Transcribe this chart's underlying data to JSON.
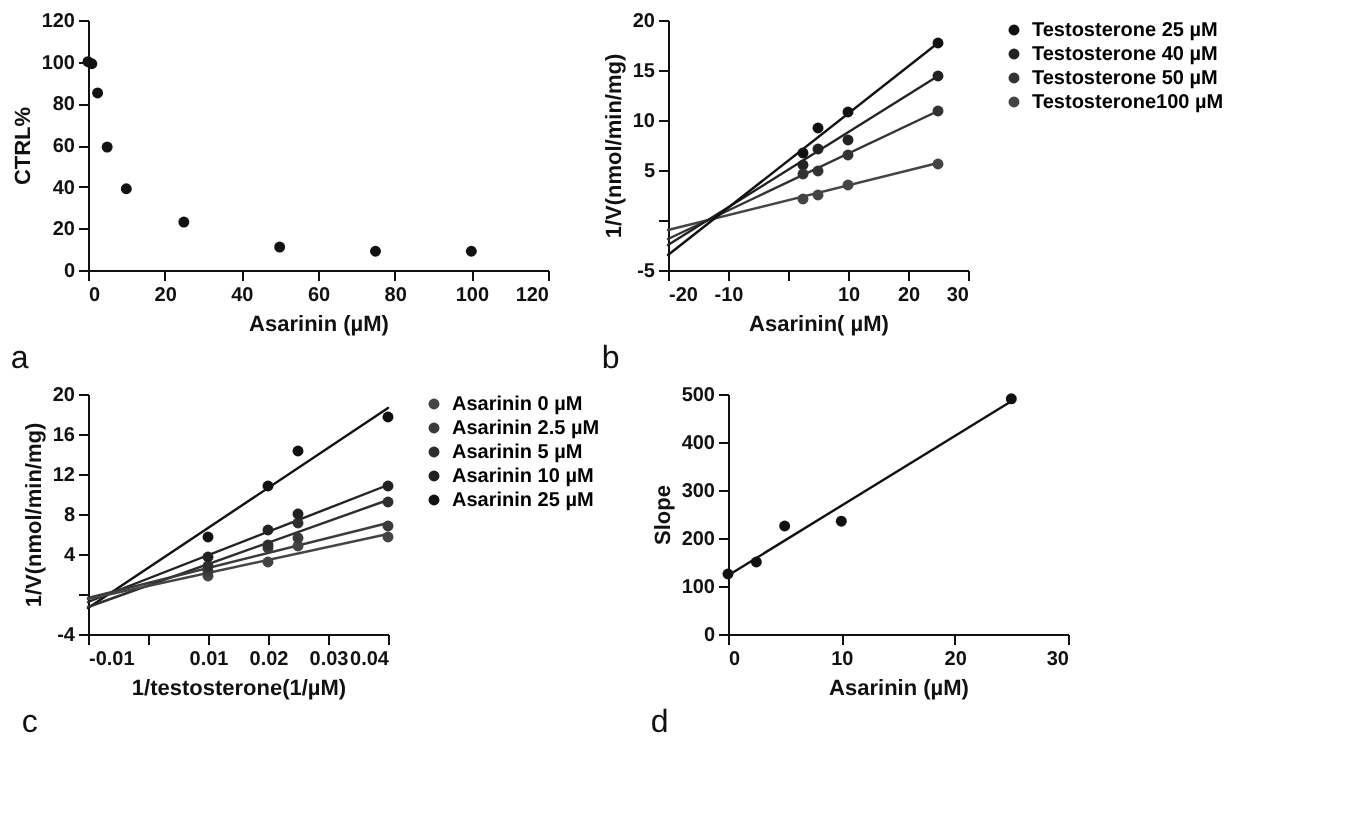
{
  "chart_data": [
    {
      "type": "scatter",
      "xlabel": "Asarinin (µM)",
      "ylabel": "CTRL%",
      "annotations": [
        "a"
      ],
      "marker": "circle",
      "grid": false,
      "legend": false,
      "xlim": [
        0,
        120
      ],
      "xticks": [
        0,
        20,
        40,
        60,
        80,
        100,
        120
      ],
      "ylim": [
        0,
        120
      ],
      "yticks": [
        0,
        20,
        40,
        60,
        80,
        100,
        120
      ],
      "series": [
        {
          "color": "#111111",
          "x": [
            0,
            1,
            2.5,
            5,
            10,
            25,
            50,
            75,
            100
          ],
          "values": [
            100,
            99,
            85,
            59,
            39,
            23,
            11,
            9,
            9
          ]
        }
      ]
    },
    {
      "type": "scatter",
      "xlabel": "Asarinin( µM)",
      "ylabel": "1/V(nmol/min/mg)",
      "annotations": [
        "b"
      ],
      "marker": "circle",
      "grid": false,
      "legend": "right",
      "xlim": [
        -20,
        30
      ],
      "xticks": [
        -20,
        -10,
        {
          "value": 0,
          "label": null
        },
        10,
        20,
        30
      ],
      "ylim": [
        -5,
        20
      ],
      "yticks": [
        -5,
        {
          "value": 0,
          "label": null
        },
        5,
        10,
        15,
        20
      ],
      "series": [
        {
          "name": "Testosterone 25  µM",
          "color": "#111111",
          "x": [
            2.5,
            5,
            10,
            25
          ],
          "values": [
            6.7,
            9.2,
            10.8,
            17.7
          ]
        },
        {
          "name": "Testosterone 40  µM",
          "color": "#222222",
          "x": [
            2.5,
            5,
            10,
            25
          ],
          "values": [
            5.5,
            7.1,
            8.0,
            14.4
          ]
        },
        {
          "name": "Testosterone 50  µM",
          "color": "#333333",
          "x": [
            2.5,
            5,
            10,
            25
          ],
          "values": [
            4.6,
            4.9,
            6.5,
            10.9
          ]
        },
        {
          "name": "Testosterone100 µM",
          "color": "#444444",
          "x": [
            2.5,
            5,
            10,
            25
          ],
          "values": [
            2.1,
            2.5,
            3.5,
            5.6
          ]
        },
        {
          "type": "line",
          "marker": "none",
          "line_style": "solid",
          "color": "#111111",
          "x": [
            -20,
            25
          ],
          "values": [
            -3.5,
            17.7
          ]
        },
        {
          "type": "line",
          "marker": "none",
          "line_style": "solid",
          "color": "#222222",
          "x": [
            -20,
            25
          ],
          "values": [
            -2.5,
            14.4
          ]
        },
        {
          "type": "line",
          "marker": "none",
          "line_style": "solid",
          "color": "#333333",
          "x": [
            -20,
            25
          ],
          "values": [
            -1.9,
            10.9
          ]
        },
        {
          "type": "line",
          "marker": "none",
          "line_style": "solid",
          "color": "#444444",
          "x": [
            -20,
            25
          ],
          "values": [
            -1.0,
            5.7
          ]
        }
      ]
    },
    {
      "type": "scatter",
      "xlabel": "1/testosterone(1/µM)",
      "ylabel": "1/V(nmol/min/mg)",
      "annotations": [
        "c"
      ],
      "marker": "circle",
      "grid": false,
      "legend": "right",
      "xlim": [
        -0.01,
        0.04
      ],
      "xticks": [
        -0.01,
        {
          "value": 0,
          "label": null
        },
        0.01,
        0.02,
        0.03,
        0.04
      ],
      "ylim": [
        -4,
        20
      ],
      "yticks": [
        -4,
        {
          "value": 0,
          "label": null
        },
        4,
        8,
        12,
        16,
        20
      ],
      "series": [
        {
          "name": "Asarinin  0  µM",
          "color": "#444444",
          "x": [
            0.01,
            0.02,
            0.025,
            0.04
          ],
          "values": [
            1.8,
            3.2,
            4.8,
            5.7
          ]
        },
        {
          "name": "Asarinin 2.5 µM",
          "color": "#3a3a3a",
          "x": [
            0.01,
            0.02,
            0.025,
            0.04
          ],
          "values": [
            2.3,
            4.6,
            5.6,
            6.8
          ]
        },
        {
          "name": "Asarinin  5  µM",
          "color": "#2e2e2e",
          "x": [
            0.01,
            0.02,
            0.025,
            0.04
          ],
          "values": [
            2.8,
            4.9,
            7.1,
            9.2
          ]
        },
        {
          "name": "Asarinin  10 µM",
          "color": "#222222",
          "x": [
            0.01,
            0.02,
            0.025,
            0.04
          ],
          "values": [
            3.7,
            6.4,
            8.0,
            10.8
          ]
        },
        {
          "name": "Asarinin  25 µM",
          "color": "#111111",
          "x": [
            0.01,
            0.02,
            0.025,
            0.04
          ],
          "values": [
            5.7,
            10.8,
            14.3,
            17.7
          ]
        },
        {
          "type": "line",
          "marker": "none",
          "line_style": "solid",
          "color": "#444444",
          "x": [
            -0.01,
            0.04
          ],
          "values": [
            -0.5,
            6.0
          ]
        },
        {
          "type": "line",
          "marker": "none",
          "line_style": "solid",
          "color": "#3a3a3a",
          "x": [
            -0.01,
            0.04
          ],
          "values": [
            -0.4,
            7.1
          ]
        },
        {
          "type": "line",
          "marker": "none",
          "line_style": "solid",
          "color": "#2e2e2e",
          "x": [
            -0.01,
            0.04
          ],
          "values": [
            -1.3,
            9.4
          ]
        },
        {
          "type": "line",
          "marker": "none",
          "line_style": "solid",
          "color": "#222222",
          "x": [
            -0.01,
            0.04
          ],
          "values": [
            -0.8,
            10.9
          ]
        },
        {
          "type": "line",
          "marker": "none",
          "line_style": "solid",
          "color": "#111111",
          "x": [
            -0.01,
            0.04
          ],
          "values": [
            -1.4,
            18.6
          ]
        }
      ]
    },
    {
      "type": "scatter",
      "xlabel": "Asarinin (µM)",
      "ylabel": "Slope",
      "annotations": [
        "d"
      ],
      "marker": "circle",
      "grid": false,
      "legend": false,
      "xlim": [
        0,
        30
      ],
      "xticks": [
        0,
        10,
        20,
        30
      ],
      "ylim": [
        0,
        500
      ],
      "yticks": [
        0,
        100,
        200,
        300,
        400,
        500
      ],
      "series": [
        {
          "color": "#111111",
          "x": [
            0,
            2.5,
            5,
            10,
            25
          ],
          "values": [
            125,
            150,
            225,
            235,
            490
          ]
        },
        {
          "type": "line",
          "marker": "none",
          "line_style": "solid",
          "color": "#111111",
          "x": [
            0,
            25
          ],
          "values": [
            122,
            485
          ]
        }
      ]
    }
  ]
}
